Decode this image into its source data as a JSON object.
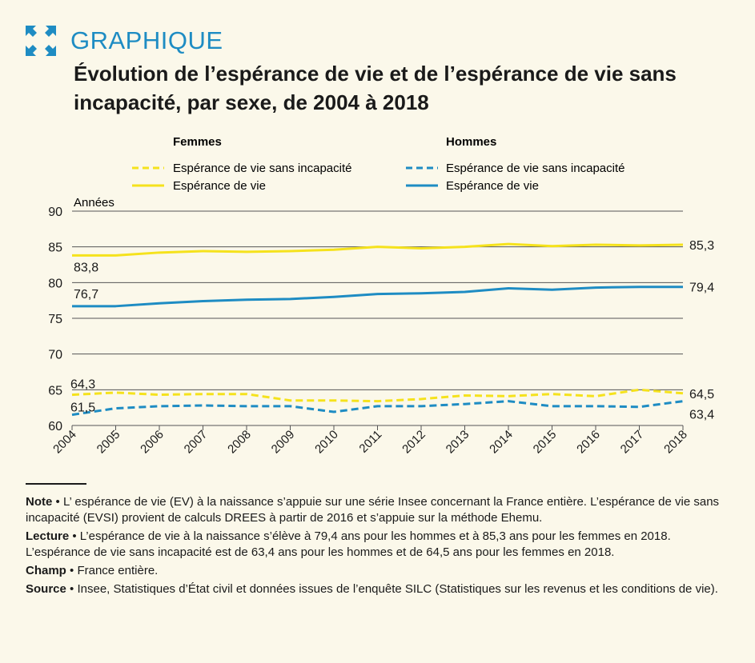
{
  "header": {
    "kicker": "GRAPHIQUE",
    "title": "Évolution de l’espérance de vie et de l’espérance de vie sans incapacité, par sexe, de 2004 à 2018"
  },
  "colors": {
    "women": "#f5e21c",
    "men": "#1e8cc3",
    "accent": "#1e8cc3"
  },
  "legend": {
    "women_title": "Femmes",
    "men_title": "Hommes",
    "evsi_label": "Espérance de vie sans incapacité",
    "ev_label": "Espérance de vie"
  },
  "chart_data": {
    "type": "line",
    "ylabel": "Années",
    "xlabel": "",
    "ylim": [
      60,
      90
    ],
    "yticks": [
      60,
      65,
      70,
      75,
      80,
      85,
      90
    ],
    "grid": true,
    "legend_position": "top",
    "x": [
      "2004",
      "2005",
      "2006",
      "2007",
      "2008",
      "2009",
      "2010",
      "2011",
      "2012",
      "2013",
      "2014",
      "2015",
      "2016",
      "2017",
      "2018"
    ],
    "series": [
      {
        "name": "Espérance de vie sans incapacité",
        "group": "Femmes",
        "style": "dashed",
        "color": "#f5e21c",
        "values": [
          64.3,
          64.6,
          64.3,
          64.4,
          64.4,
          63.5,
          63.5,
          63.4,
          63.7,
          64.2,
          64.1,
          64.4,
          64.1,
          65.0,
          64.5
        ],
        "start_label": "64,3",
        "end_label": "64,5"
      },
      {
        "name": "Espérance de vie",
        "group": "Femmes",
        "style": "solid",
        "color": "#f5e21c",
        "values": [
          83.8,
          83.8,
          84.2,
          84.4,
          84.3,
          84.4,
          84.6,
          85.0,
          84.8,
          85.0,
          85.4,
          85.1,
          85.3,
          85.2,
          85.3
        ],
        "start_label": "83,8",
        "end_label": "85,3"
      },
      {
        "name": "Espérance de vie sans incapacité",
        "group": "Hommes",
        "style": "dashed",
        "color": "#1e8cc3",
        "values": [
          61.5,
          62.4,
          62.7,
          62.8,
          62.7,
          62.7,
          61.9,
          62.7,
          62.7,
          63.0,
          63.4,
          62.7,
          62.7,
          62.6,
          63.4
        ],
        "start_label": "61,5",
        "end_label": "63,4"
      },
      {
        "name": "Espérance de vie",
        "group": "Hommes",
        "style": "solid",
        "color": "#1e8cc3",
        "values": [
          76.7,
          76.7,
          77.1,
          77.4,
          77.6,
          77.7,
          78.0,
          78.4,
          78.5,
          78.7,
          79.2,
          79.0,
          79.3,
          79.4,
          79.4
        ],
        "start_label": "76,7",
        "end_label": "79,4"
      }
    ]
  },
  "notes": {
    "note_label": "Note",
    "note_text": "L’ espérance de vie (EV) à la naissance s’appuie sur une série Insee concernant la France entière. L’espérance de vie sans incapacité (EVSI) provient de calculs DREES à partir de 2016 et s’appuie sur la méthode Ehemu.",
    "lecture_label": "Lecture",
    "lecture_text": "L’espérance de vie à la naissance s’élève à 79,4 ans pour les hommes et à 85,3 ans pour les femmes en 2018. L’espérance de vie sans incapacité est de 63,4 ans pour les hommes et de 64,5 ans pour les femmes en 2018.",
    "champ_label": "Champ",
    "champ_text": "France entière.",
    "source_label": "Source",
    "source_text": "Insee, Statistiques d’État civil et données issues de l’enquête SILC (Statistiques sur les revenus et les conditions de vie).",
    "bullet": "•"
  }
}
